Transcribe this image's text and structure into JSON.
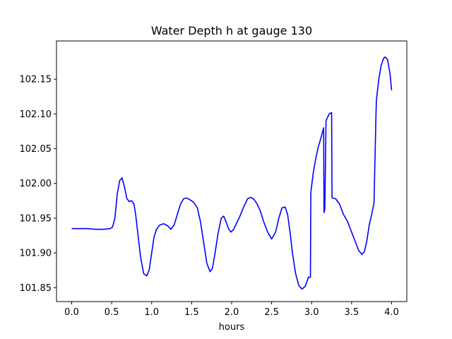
{
  "chart_data": {
    "type": "line",
    "title": "Water Depth h at gauge 130",
    "xlabel": "hours",
    "ylabel": "",
    "xlim": [
      -0.19,
      4.19
    ],
    "ylim": [
      101.83,
      102.205
    ],
    "xticks": [
      0.0,
      0.5,
      1.0,
      1.5,
      2.0,
      2.5,
      3.0,
      3.5,
      4.0
    ],
    "xtick_labels": [
      "0.0",
      "0.5",
      "1.0",
      "1.5",
      "2.0",
      "2.5",
      "3.0",
      "3.5",
      "4.0"
    ],
    "yticks": [
      101.85,
      101.9,
      101.95,
      102.0,
      102.05,
      102.1,
      102.15
    ],
    "ytick_labels": [
      "101.85",
      "101.90",
      "101.95",
      "102.00",
      "102.05",
      "102.10",
      "102.15"
    ],
    "grid": false,
    "line_color": "#0000ff",
    "series": [
      {
        "name": "",
        "x": [
          0.0,
          0.1,
          0.2,
          0.3,
          0.4,
          0.48,
          0.51,
          0.54,
          0.57,
          0.6,
          0.63,
          0.66,
          0.69,
          0.72,
          0.75,
          0.78,
          0.8,
          0.83,
          0.86,
          0.9,
          0.94,
          0.97,
          1.0,
          1.03,
          1.06,
          1.1,
          1.15,
          1.2,
          1.24,
          1.28,
          1.32,
          1.36,
          1.4,
          1.44,
          1.47,
          1.5,
          1.53,
          1.57,
          1.61,
          1.65,
          1.69,
          1.73,
          1.76,
          1.79,
          1.83,
          1.87,
          1.9,
          1.93,
          1.96,
          1.99,
          2.02,
          2.05,
          2.1,
          2.15,
          2.2,
          2.24,
          2.28,
          2.32,
          2.36,
          2.4,
          2.45,
          2.5,
          2.55,
          2.59,
          2.63,
          2.67,
          2.7,
          2.73,
          2.76,
          2.8,
          2.84,
          2.88,
          2.92,
          2.96,
          2.985,
          2.99,
          3.02,
          3.05,
          3.08,
          3.12,
          3.15,
          3.155,
          3.165,
          3.18,
          3.195,
          3.22,
          3.25,
          3.255,
          3.26,
          3.3,
          3.35,
          3.4,
          3.45,
          3.5,
          3.55,
          3.59,
          3.63,
          3.66,
          3.69,
          3.72,
          3.75,
          3.78,
          3.805,
          3.81,
          3.84,
          3.87,
          3.9,
          3.92,
          3.95,
          3.98,
          4.0
        ],
        "values": [
          101.935,
          101.935,
          101.935,
          101.934,
          101.934,
          101.935,
          101.937,
          101.95,
          101.985,
          102.004,
          102.008,
          101.995,
          101.978,
          101.974,
          101.975,
          101.97,
          101.955,
          101.925,
          101.895,
          101.87,
          101.867,
          101.876,
          101.9,
          101.923,
          101.934,
          101.94,
          101.942,
          101.939,
          101.934,
          101.94,
          101.955,
          101.97,
          101.978,
          101.979,
          101.977,
          101.975,
          101.972,
          101.965,
          101.945,
          101.915,
          101.885,
          101.873,
          101.878,
          101.898,
          101.928,
          101.95,
          101.953,
          101.945,
          101.935,
          101.93,
          101.933,
          101.94,
          101.952,
          101.966,
          101.978,
          101.98,
          101.977,
          101.97,
          101.96,
          101.945,
          101.93,
          101.92,
          101.93,
          101.95,
          101.965,
          101.966,
          101.955,
          101.93,
          101.9,
          101.87,
          101.853,
          101.848,
          101.852,
          101.865,
          101.865,
          101.987,
          102.015,
          102.035,
          102.051,
          102.067,
          102.08,
          101.958,
          101.963,
          102.09,
          102.094,
          102.1,
          102.102,
          101.98,
          101.979,
          101.978,
          101.97,
          101.955,
          101.945,
          101.93,
          101.915,
          101.903,
          101.898,
          101.902,
          101.917,
          101.94,
          101.955,
          101.972,
          102.1,
          102.12,
          102.15,
          102.17,
          102.18,
          102.182,
          102.178,
          102.158,
          102.134
        ]
      }
    ]
  }
}
